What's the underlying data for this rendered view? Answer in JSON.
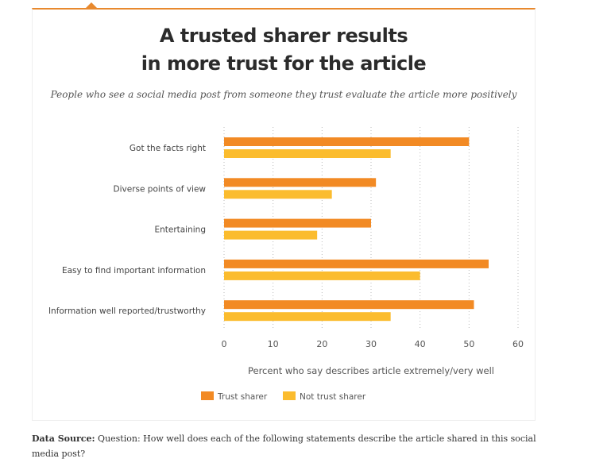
{
  "title_line1": "A trusted sharer results",
  "title_line2": "in more trust for the article",
  "subtitle": "People who see a social media post from someone they trust evaluate the article more positively",
  "source_label": "Data Source:",
  "source_text": "Question: How well does each of the following statements describe the article shared in this social media post?",
  "chart_data": {
    "type": "bar",
    "orientation": "horizontal",
    "title": "A trusted sharer results in more trust for the article",
    "categories": [
      "Got the facts right",
      "Diverse points of view",
      "Entertaining",
      "Easy to find important information",
      "Information well reported/trustworthy"
    ],
    "series": [
      {
        "name": "Trust sharer",
        "color": "#f28a24",
        "values": [
          50,
          31,
          30,
          54,
          51
        ]
      },
      {
        "name": "Not trust sharer",
        "color": "#fbbc2e",
        "values": [
          34,
          22,
          19,
          40,
          34
        ]
      }
    ],
    "xlabel": "Percent who say describes article extremely/very well",
    "xlim": [
      0,
      60
    ],
    "xticks": [
      0,
      10,
      20,
      30,
      40,
      50,
      60
    ],
    "grid": true,
    "legend": "bottom"
  }
}
